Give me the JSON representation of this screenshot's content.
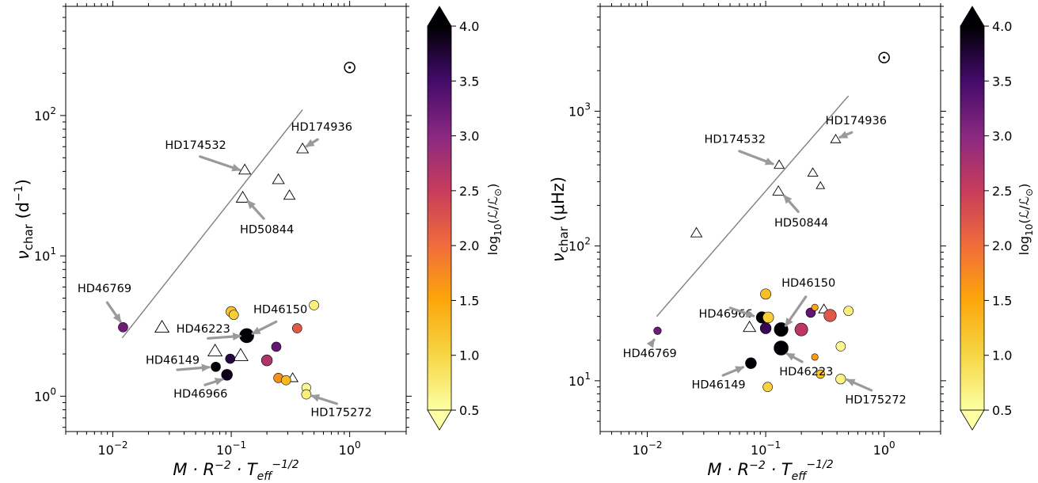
{
  "chart_data": [
    {
      "type": "scatter",
      "xscale": "log",
      "yscale": "log",
      "xlim": [
        0.004,
        3.0
      ],
      "ylim": [
        0.56,
        600
      ],
      "xlabel": "M · R^-2 · T_eff^-1/2",
      "ylabel": "ν_char (d⁻¹)",
      "x_ticklabels": [
        "10^-2",
        "10^-1",
        "10^0"
      ],
      "y_ticklabels": [
        "10^0",
        "10^1",
        "10^2"
      ],
      "colorbar": {
        "label": "log10(L/L☉)",
        "range": [
          0.5,
          4.0
        ],
        "ticks": [
          "0.5",
          "1.0",
          "1.5",
          "2.0",
          "2.5",
          "3.0",
          "3.5",
          "4.0"
        ],
        "colormap": "inferno_r",
        "extend": "both"
      },
      "sun_marker": {
        "symbol": "⊙",
        "x": 1.0,
        "y": 220
      },
      "trend_line": {
        "x": [
          0.012,
          0.4
        ],
        "y": [
          2.6,
          110
        ]
      },
      "series": [
        {
          "marker": "open-triangle",
          "points": [
            {
              "x": 0.13,
              "y": 41,
              "size": 1.0
            },
            {
              "x": 0.125,
              "y": 26,
              "size": 1.1
            },
            {
              "x": 0.25,
              "y": 35,
              "size": 1.0
            },
            {
              "x": 0.31,
              "y": 27,
              "size": 0.95
            },
            {
              "x": 0.4,
              "y": 58,
              "size": 1.0
            },
            {
              "x": 0.026,
              "y": 3.1,
              "size": 1.2
            },
            {
              "x": 0.073,
              "y": 2.1,
              "size": 1.2
            },
            {
              "x": 0.12,
              "y": 1.95,
              "size": 1.25
            },
            {
              "x": 0.33,
              "y": 1.35,
              "size": 0.9
            }
          ]
        },
        {
          "marker": "filled-circle",
          "points": [
            {
              "x": 0.0122,
              "y": 3.1,
              "c": 3.2,
              "size": 1.0
            },
            {
              "x": 0.1,
              "y": 4.0,
              "c": 1.2,
              "size": 1.1
            },
            {
              "x": 0.105,
              "y": 3.8,
              "c": 1.1,
              "size": 1.0
            },
            {
              "x": 0.135,
              "y": 2.7,
              "c": 4.0,
              "size": 1.5
            },
            {
              "x": 0.098,
              "y": 1.85,
              "c": 3.7,
              "size": 1.0
            },
            {
              "x": 0.074,
              "y": 1.62,
              "c": 4.0,
              "size": 1.0
            },
            {
              "x": 0.092,
              "y": 1.42,
              "c": 3.9,
              "size": 1.15
            },
            {
              "x": 0.24,
              "y": 2.25,
              "c": 3.3,
              "size": 1.0
            },
            {
              "x": 0.2,
              "y": 1.8,
              "c": 2.7,
              "size": 1.15
            },
            {
              "x": 0.36,
              "y": 3.05,
              "c": 2.2,
              "size": 1.0
            },
            {
              "x": 0.25,
              "y": 1.35,
              "c": 1.7,
              "size": 1.0
            },
            {
              "x": 0.29,
              "y": 1.3,
              "c": 1.3,
              "size": 1.0
            },
            {
              "x": 0.5,
              "y": 4.45,
              "c": 0.7,
              "size": 1.0
            },
            {
              "x": 0.43,
              "y": 1.15,
              "c": 0.6,
              "size": 0.95
            },
            {
              "x": 0.43,
              "y": 1.03,
              "c": 0.7,
              "size": 1.0
            }
          ]
        }
      ],
      "annotations": [
        {
          "text": "HD174532",
          "tx": 0.05,
          "ty": 58,
          "ax": 0.128,
          "ay": 40
        },
        {
          "text": "HD174936",
          "tx": 0.58,
          "ty": 78,
          "ax": 0.4,
          "ay": 58
        },
        {
          "text": "HD50844",
          "tx": 0.2,
          "ty": 14.5,
          "ax": 0.13,
          "ay": 26
        },
        {
          "text": "HD46769",
          "tx": 0.0085,
          "ty": 5.5,
          "ax": 0.0122,
          "ay": 3.2
        },
        {
          "text": "HD46150",
          "tx": 0.26,
          "ty": 3.9,
          "ax": 0.14,
          "ay": 2.7
        },
        {
          "text": "HD46223",
          "tx": 0.058,
          "ty": 2.85,
          "ax": 0.13,
          "ay": 2.7
        },
        {
          "text": "HD46149",
          "tx": 0.032,
          "ty": 1.7,
          "ax": 0.071,
          "ay": 1.62
        },
        {
          "text": "HD46966",
          "tx": 0.055,
          "ty": 0.98,
          "ax": 0.092,
          "ay": 1.35
        },
        {
          "text": "HD175272",
          "tx": 0.85,
          "ty": 0.72,
          "ax": 0.44,
          "ay": 1.03
        }
      ]
    },
    {
      "type": "scatter",
      "xscale": "log",
      "yscale": "log",
      "xlim": [
        0.004,
        3.0
      ],
      "ylim": [
        4.2,
        6000
      ],
      "xlabel": "M · R^-2 · T_eff^-1/2",
      "ylabel": "ν_char (μHz)",
      "x_ticklabels": [
        "10^-2",
        "10^-1",
        "10^0"
      ],
      "y_ticklabels": [
        "10^1",
        "10^2",
        "10^3"
      ],
      "colorbar": {
        "label": "log10(L/L☉)",
        "range": [
          0.5,
          4.0
        ],
        "ticks": [
          "0.5",
          "1.0",
          "1.5",
          "2.0",
          "2.5",
          "3.0",
          "3.5",
          "4.0"
        ],
        "colormap": "inferno_r",
        "extend": "both"
      },
      "sun_marker": {
        "symbol": "⊙",
        "x": 1.0,
        "y": 2500
      },
      "trend_line": {
        "x": [
          0.012,
          0.5
        ],
        "y": [
          30,
          1300
        ]
      },
      "series": [
        {
          "marker": "open-triangle",
          "points": [
            {
              "x": 0.13,
              "y": 400,
              "size": 0.85
            },
            {
              "x": 0.128,
              "y": 255,
              "size": 0.95
            },
            {
              "x": 0.25,
              "y": 350,
              "size": 0.85
            },
            {
              "x": 0.29,
              "y": 280,
              "size": 0.7
            },
            {
              "x": 0.39,
              "y": 620,
              "size": 0.85
            },
            {
              "x": 0.026,
              "y": 125,
              "size": 0.95
            },
            {
              "x": 0.073,
              "y": 25,
              "size": 1.05
            },
            {
              "x": 0.31,
              "y": 34,
              "size": 0.9
            }
          ]
        },
        {
          "marker": "filled-circle",
          "points": [
            {
              "x": 0.0122,
              "y": 23.5,
              "c": 3.2,
              "size": 0.8
            },
            {
              "x": 0.1,
              "y": 44,
              "c": 1.25,
              "size": 1.1
            },
            {
              "x": 0.093,
              "y": 29.5,
              "c": 4.0,
              "size": 1.2
            },
            {
              "x": 0.105,
              "y": 29.5,
              "c": 1.1,
              "size": 1.15
            },
            {
              "x": 0.1,
              "y": 24.5,
              "c": 3.6,
              "size": 1.15
            },
            {
              "x": 0.135,
              "y": 24,
              "c": 4.0,
              "size": 1.45
            },
            {
              "x": 0.135,
              "y": 17.5,
              "c": 4.0,
              "size": 1.5
            },
            {
              "x": 0.075,
              "y": 13.5,
              "c": 4.0,
              "size": 1.15
            },
            {
              "x": 0.104,
              "y": 9.0,
              "c": 1.05,
              "size": 1.0
            },
            {
              "x": 0.2,
              "y": 24,
              "c": 2.6,
              "size": 1.35
            },
            {
              "x": 0.24,
              "y": 32,
              "c": 3.3,
              "size": 1.0
            },
            {
              "x": 0.26,
              "y": 35,
              "c": 1.5,
              "size": 0.7
            },
            {
              "x": 0.35,
              "y": 30.5,
              "c": 2.2,
              "size": 1.3
            },
            {
              "x": 0.26,
              "y": 15.0,
              "c": 1.6,
              "size": 0.7
            },
            {
              "x": 0.29,
              "y": 11.2,
              "c": 1.2,
              "size": 0.9
            },
            {
              "x": 0.5,
              "y": 33,
              "c": 0.7,
              "size": 1.0
            },
            {
              "x": 0.43,
              "y": 18,
              "c": 0.6,
              "size": 1.0
            },
            {
              "x": 0.43,
              "y": 10.3,
              "c": 0.65,
              "size": 1.05
            }
          ]
        }
      ],
      "annotations": [
        {
          "text": "HD174532",
          "tx": 0.055,
          "ty": 580,
          "ax": 0.125,
          "ay": 395
        },
        {
          "text": "HD174936",
          "tx": 0.58,
          "ty": 800,
          "ax": 0.39,
          "ay": 620
        },
        {
          "text": "HD50844",
          "tx": 0.2,
          "ty": 140,
          "ax": 0.135,
          "ay": 250
        },
        {
          "text": "HD46769",
          "tx": 0.0105,
          "ty": 15.0,
          "ax": 0.012,
          "ay": 21.5
        },
        {
          "text": "HD46150",
          "tx": 0.23,
          "ty": 50,
          "ax": 0.14,
          "ay": 24
        },
        {
          "text": "HD46966",
          "tx": 0.046,
          "ty": 29.5,
          "ax": 0.086,
          "ay": 29.5
        },
        {
          "text": "HD46223",
          "tx": 0.22,
          "ty": 11.0,
          "ax": 0.14,
          "ay": 16.5
        },
        {
          "text": "HD46149",
          "tx": 0.04,
          "ty": 8.8,
          "ax": 0.07,
          "ay": 13.0
        },
        {
          "text": "HD175272",
          "tx": 0.85,
          "ty": 6.8,
          "ax": 0.45,
          "ay": 10.5
        }
      ]
    }
  ]
}
